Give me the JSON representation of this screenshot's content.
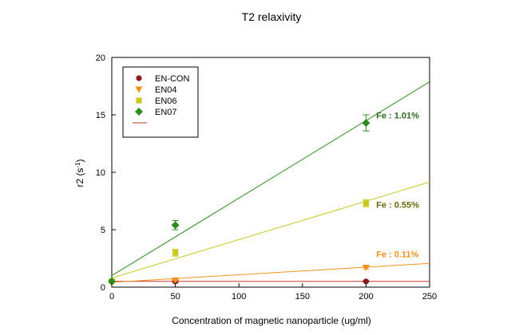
{
  "chart_data": {
    "type": "scatter",
    "title": "T2 relaxivity",
    "xlabel": "Concentration of magnetic nanoparticle (ug/ml)",
    "ylabel_main": "r2 (s",
    "ylabel_sup": "-1",
    "ylabel_close": ")",
    "xlim": [
      0,
      250
    ],
    "ylim": [
      0,
      20
    ],
    "xticks": [
      "0",
      "50",
      "100",
      "150",
      "200",
      "250"
    ],
    "yticks": [
      "0",
      "5",
      "10",
      "15",
      "20"
    ],
    "grid": false,
    "legend_position": "top-left",
    "series": [
      {
        "name": "EN-CON",
        "marker": "circle",
        "color": "#8b1a1a",
        "points": [
          [
            0,
            0.5
          ],
          [
            50,
            0.5
          ],
          [
            200,
            0.5
          ]
        ],
        "errors": [
          0,
          0.1,
          0.05
        ],
        "fit": {
          "intercept": 0.5,
          "slope": 0.0,
          "color": "#c0392b"
        }
      },
      {
        "name": "EN04",
        "marker": "triangle-down",
        "color": "#f5901e",
        "points": [
          [
            0,
            0.5
          ],
          [
            50,
            0.6
          ],
          [
            200,
            1.7
          ]
        ],
        "errors": [
          0,
          0.05,
          0.1
        ],
        "fit": {
          "intercept": 0.42,
          "slope": 0.0066,
          "color": "#f5901e"
        }
      },
      {
        "name": "EN06",
        "marker": "square",
        "color": "#c8c820",
        "points": [
          [
            0,
            0.5
          ],
          [
            50,
            3.0
          ],
          [
            200,
            7.3
          ]
        ],
        "errors": [
          0,
          0.3,
          0.3
        ],
        "fit": {
          "intercept": 0.8,
          "slope": 0.0334,
          "color": "#c8c820"
        }
      },
      {
        "name": "EN07",
        "marker": "diamond",
        "color": "#2e8b1f",
        "points": [
          [
            0,
            0.5
          ],
          [
            50,
            5.4
          ],
          [
            200,
            14.3
          ]
        ],
        "errors": [
          0,
          0.4,
          0.7
        ],
        "fit": {
          "intercept": 1.0,
          "slope": 0.0675,
          "color": "#2e8b1f"
        }
      }
    ],
    "legend_extra_line": {
      "color": "#c0392b"
    },
    "annotations": [
      {
        "text": "Fe : 1.01%",
        "x": 208,
        "y": 14.7,
        "color": "#2e6b1f"
      },
      {
        "text": "Fe : 0.55%",
        "x": 208,
        "y": 6.9,
        "color": "#6b6b10"
      },
      {
        "text": "Fe : 0.11%",
        "x": 208,
        "y": 2.6,
        "color": "#f5901e"
      }
    ]
  }
}
